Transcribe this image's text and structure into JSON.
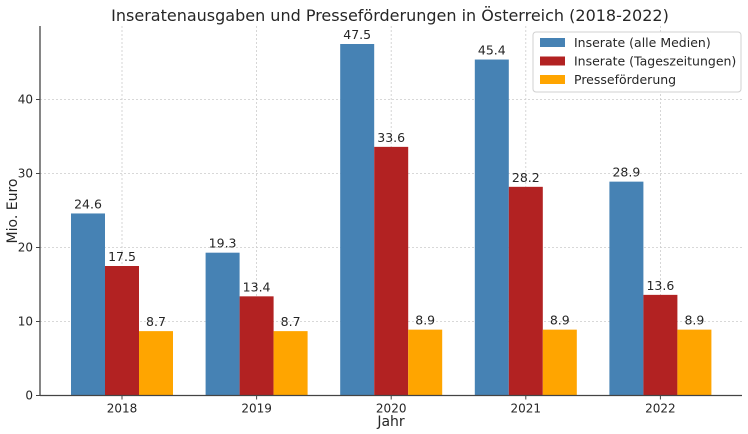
{
  "chart_data": {
    "type": "bar",
    "title": "Inseratenausgaben und Presseförderungen in Österreich (2018-2022)",
    "xlabel": "Jahr",
    "ylabel": "Mio. Euro",
    "categories": [
      "2018",
      "2019",
      "2020",
      "2021",
      "2022"
    ],
    "series": [
      {
        "name": "Inserate (alle Medien)",
        "color": "#4682B4",
        "values": [
          24.6,
          19.3,
          47.5,
          45.4,
          28.9
        ]
      },
      {
        "name": "Inserate (Tageszeitungen)",
        "color": "#B22222",
        "values": [
          17.5,
          13.4,
          33.6,
          28.2,
          13.6
        ]
      },
      {
        "name": "Presseförderung",
        "color": "#FFA500",
        "values": [
          8.7,
          8.7,
          8.9,
          8.9,
          8.9
        ]
      }
    ],
    "yticks": [
      "0",
      "10",
      "20",
      "30",
      "40"
    ],
    "ylim": [
      0,
      49.9
    ],
    "grid": true,
    "legend": "top-right",
    "data_labels": true
  }
}
